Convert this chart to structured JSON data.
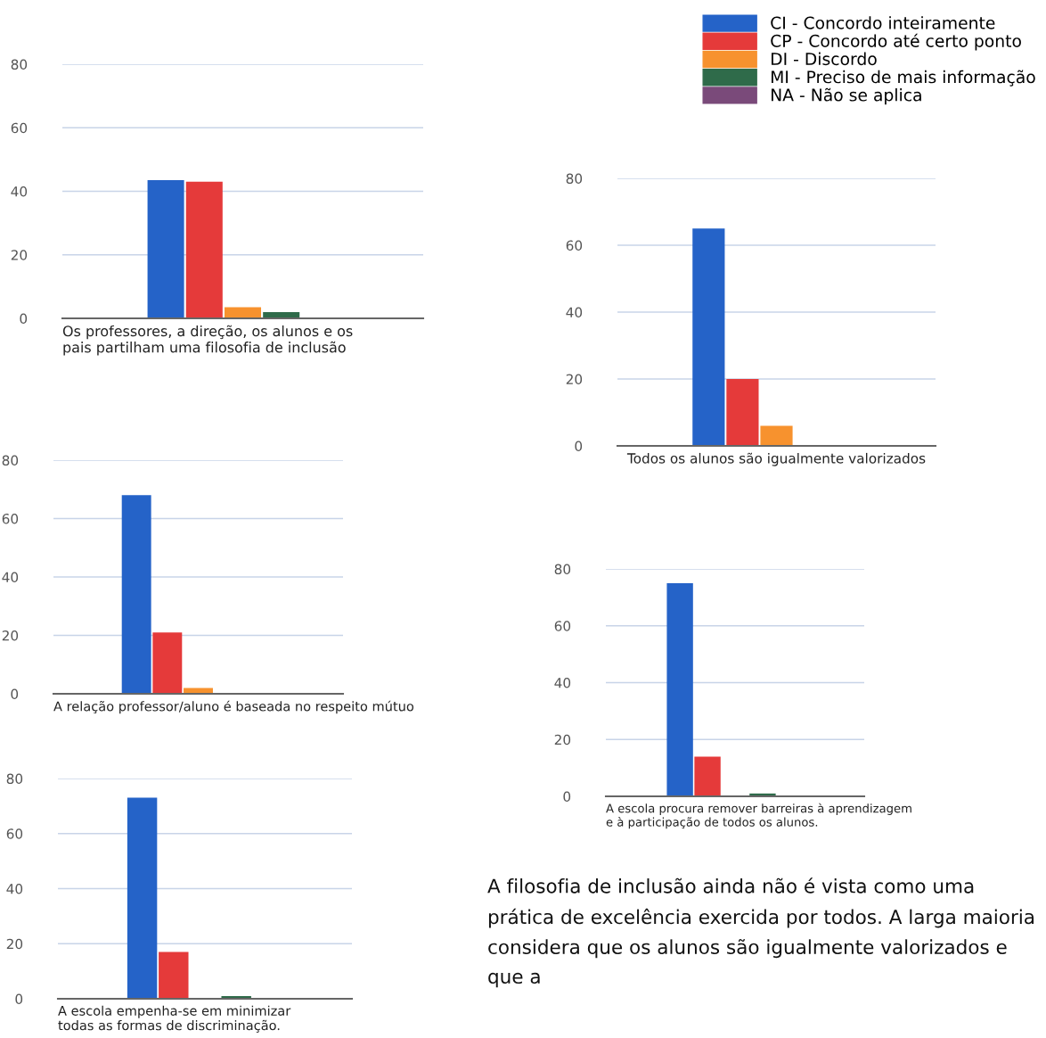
{
  "chart_data": [
    {
      "type": "bar",
      "xlabel": "Os professores, a direção, os alunos e os\npais partilham uma filosofia de inclusão",
      "categories": [
        null
      ],
      "ylim": [
        0,
        80
      ],
      "yticks": [
        0,
        20,
        40,
        60,
        80
      ],
      "grid": "y",
      "legend": "top right",
      "series": [
        {
          "name": "CI - Concordo inteiramente",
          "color": "#2563c8",
          "values": [
            43.5
          ]
        },
        {
          "name": "CP - Concordo até certo ponto",
          "color": "#e53a3a",
          "values": [
            43
          ]
        },
        {
          "name": "DI - Discordo",
          "color": "#f7922e",
          "values": [
            3.5
          ]
        },
        {
          "name": "MI - Preciso de mais informação",
          "color": "#2f6b4a",
          "values": [
            2
          ]
        },
        {
          "name": "NA - Não se aplica",
          "color": "#7a4a7a",
          "values": [
            0
          ]
        }
      ]
    },
    {
      "type": "bar",
      "xlabel": "Todos os alunos são igualmente valorizados",
      "categories": [
        null
      ],
      "ylim": [
        0,
        80
      ],
      "yticks": [
        0,
        20,
        40,
        60,
        80
      ],
      "grid": "y",
      "series": [
        {
          "color": "#2563c8",
          "values": [
            65
          ]
        },
        {
          "color": "#e53a3a",
          "values": [
            20
          ]
        },
        {
          "color": "#f7922e",
          "values": [
            6
          ]
        },
        {
          "color": "#2f6b4a",
          "values": [
            0
          ]
        },
        {
          "color": "#7a4a7a",
          "values": [
            0
          ]
        }
      ]
    },
    {
      "type": "bar",
      "xlabel": "A relação professor/aluno é baseada no respeito mútuo",
      "categories": [
        null
      ],
      "ylim": [
        0,
        80
      ],
      "yticks": [
        0,
        20,
        40,
        60,
        80
      ],
      "grid": "y",
      "series": [
        {
          "color": "#2563c8",
          "values": [
            68
          ]
        },
        {
          "color": "#e53a3a",
          "values": [
            21
          ]
        },
        {
          "color": "#f7922e",
          "values": [
            2
          ]
        },
        {
          "color": "#2f6b4a",
          "values": [
            0
          ]
        },
        {
          "color": "#7a4a7a",
          "values": [
            0
          ]
        }
      ]
    },
    {
      "type": "bar",
      "xlabel": "A escola procura remover barreiras à aprendizagem\ne à participação de todos os alunos.",
      "categories": [
        null
      ],
      "ylim": [
        0,
        80
      ],
      "yticks": [
        0,
        20,
        40,
        60,
        80
      ],
      "grid": "y",
      "annotations": [
        "A filosofia de inclusão ainda não é vista como uma prática de excelência exercida por todos. A larga maioria considera que os alunos são igualmente valorizados e que a"
      ],
      "series": [
        {
          "color": "#2563c8",
          "values": [
            75
          ]
        },
        {
          "color": "#e53a3a",
          "values": [
            14
          ]
        },
        {
          "color": "#f7922e",
          "values": [
            0
          ]
        },
        {
          "color": "#2f6b4a",
          "values": [
            1
          ]
        },
        {
          "color": "#7a4a7a",
          "values": [
            0
          ]
        }
      ]
    },
    {
      "type": "bar",
      "xlabel": "A escola empenha-se em minimizar\ntodas as formas de discriminação.",
      "categories": [
        null
      ],
      "ylim": [
        0,
        80
      ],
      "yticks": [
        0,
        20,
        40,
        60,
        80
      ],
      "grid": "y",
      "series": [
        {
          "color": "#2563c8",
          "values": [
            73
          ]
        },
        {
          "color": "#e53a3a",
          "values": [
            17
          ]
        },
        {
          "color": "#f7922e",
          "values": [
            0
          ]
        },
        {
          "color": "#2f6b4a",
          "values": [
            1
          ]
        },
        {
          "color": "#7a4a7a",
          "values": [
            0
          ]
        }
      ]
    }
  ]
}
